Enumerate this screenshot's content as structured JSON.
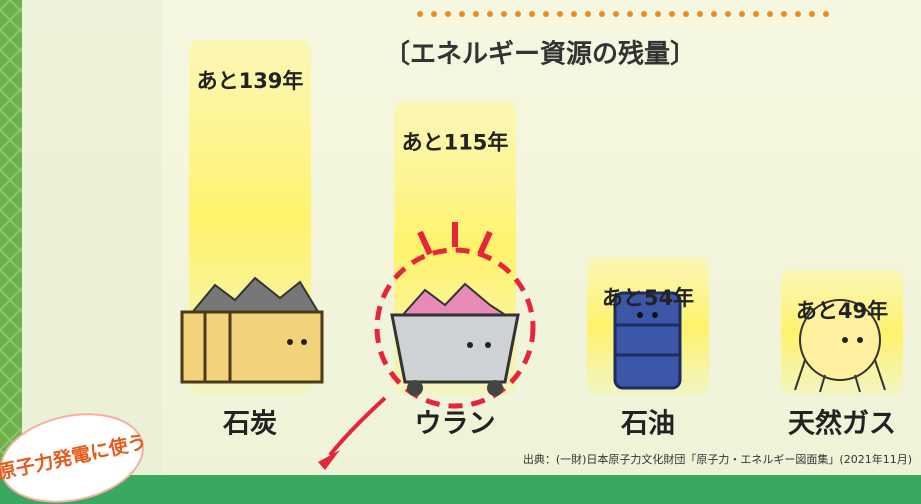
{
  "chart_data": {
    "type": "bar",
    "title": "〔エネルギー資源の残量〕",
    "categories": [
      "石炭",
      "ウラン",
      "石油",
      "天然ガス"
    ],
    "values": [
      139,
      115,
      54,
      49
    ],
    "value_labels": [
      "あと139年",
      "あと115年",
      "あと54年",
      "あと49年"
    ],
    "color": "#fff36b",
    "annotation": "原子力発電に使う",
    "source": "出典：(一財)日本原子力文化財団「原子力・エネルギー図面集」(2021年11月)"
  }
}
